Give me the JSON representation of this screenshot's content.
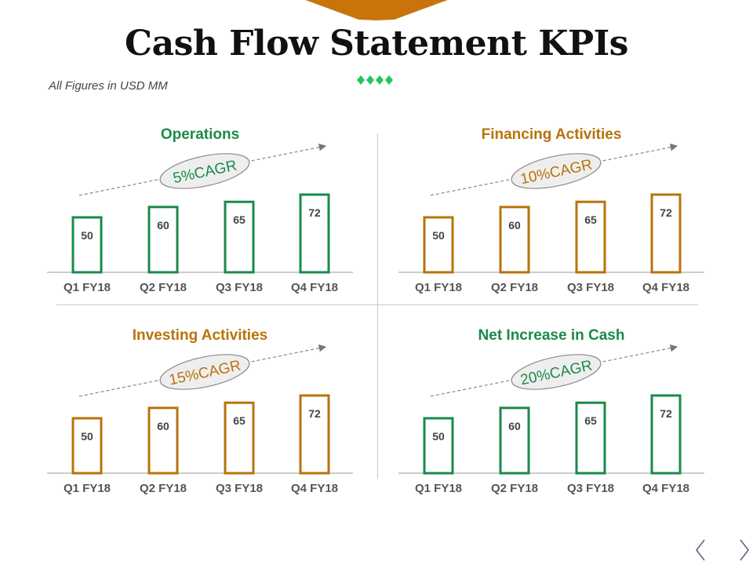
{
  "page": {
    "title": "Cash Flow Statement KPIs",
    "subtitle": "All Figures in USD MM"
  },
  "colors": {
    "green": "#1a8a4a",
    "orange": "#b8730a",
    "accent_tab": "#c8740a",
    "diamond": "#22c55e"
  },
  "navigation": {
    "prev_icon": "chevron-left-icon",
    "next_icon": "chevron-right-icon"
  },
  "chart_data": [
    {
      "type": "bar",
      "title": "Operations",
      "annotation": "5%CAGR",
      "color": "#1a8a4a",
      "categories": [
        "Q1 FY18",
        "Q2 FY18",
        "Q3 FY18",
        "Q4 FY18"
      ],
      "values": [
        50,
        60,
        65,
        72
      ]
    },
    {
      "type": "bar",
      "title": "Financing Activities",
      "annotation": "10%CAGR",
      "color": "#b8730a",
      "categories": [
        "Q1 FY18",
        "Q2 FY18",
        "Q3 FY18",
        "Q4 FY18"
      ],
      "values": [
        50,
        60,
        65,
        72
      ]
    },
    {
      "type": "bar",
      "title": "Investing Activities",
      "annotation": "15%CAGR",
      "color": "#b8730a",
      "categories": [
        "Q1 FY18",
        "Q2 FY18",
        "Q3 FY18",
        "Q4 FY18"
      ],
      "values": [
        50,
        60,
        65,
        72
      ]
    },
    {
      "type": "bar",
      "title": "Net Increase in Cash",
      "annotation": "20%CAGR",
      "color": "#1a8a4a",
      "categories": [
        "Q1 FY18",
        "Q2 FY18",
        "Q3 FY18",
        "Q4 FY18"
      ],
      "values": [
        50,
        60,
        65,
        72
      ]
    }
  ]
}
